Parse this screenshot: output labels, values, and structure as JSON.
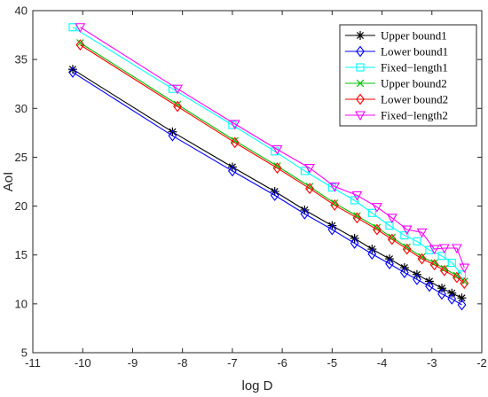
{
  "chart_data": {
    "type": "line",
    "xlabel": "log D",
    "ylabel": "AoI",
    "xlim": [
      -11,
      -2
    ],
    "ylim": [
      5,
      40
    ],
    "xticks": [
      -11,
      -10,
      -9,
      -8,
      -7,
      -6,
      -5,
      -4,
      -3,
      -2
    ],
    "yticks": [
      5,
      10,
      15,
      20,
      25,
      30,
      35,
      40
    ],
    "grid": false,
    "legend_position": "top-right",
    "series": [
      {
        "name": "Upper bound1",
        "color": "#000000",
        "marker": "asterisk",
        "x": [
          -10.2,
          -8.2,
          -7.0,
          -6.15,
          -5.55,
          -5.0,
          -4.55,
          -4.2,
          -3.85,
          -3.55,
          -3.3,
          -3.05,
          -2.8,
          -2.6,
          -2.4
        ],
        "y": [
          34.0,
          27.6,
          24.0,
          21.5,
          19.6,
          18.0,
          16.7,
          15.6,
          14.6,
          13.7,
          13.0,
          12.3,
          11.6,
          11.1,
          10.6
        ]
      },
      {
        "name": "Lower bound1",
        "color": "#0000ff",
        "marker": "diamond",
        "x": [
          -10.2,
          -8.2,
          -7.0,
          -6.15,
          -5.55,
          -5.0,
          -4.55,
          -4.2,
          -3.85,
          -3.55,
          -3.3,
          -3.05,
          -2.8,
          -2.6,
          -2.4
        ],
        "y": [
          33.7,
          27.2,
          23.6,
          21.1,
          19.2,
          17.6,
          16.2,
          15.1,
          14.1,
          13.2,
          12.5,
          11.8,
          11.0,
          10.5,
          9.9
        ]
      },
      {
        "name": "Fixed−length1",
        "color": "#00ffff",
        "marker": "square",
        "x": [
          -10.2,
          -8.2,
          -7.0,
          -6.15,
          -5.55,
          -5.0,
          -4.55,
          -4.2,
          -3.85,
          -3.55,
          -3.3,
          -3.05,
          -2.8,
          -2.6,
          -2.4
        ],
        "y": [
          38.3,
          32.0,
          28.3,
          25.6,
          23.6,
          21.9,
          20.6,
          19.3,
          18.0,
          17.0,
          16.4,
          15.5,
          14.9,
          14.2,
          13.0
        ]
      },
      {
        "name": "Upper bound2",
        "color": "#00c000",
        "marker": "x",
        "x": [
          -10.05,
          -8.1,
          -6.95,
          -6.1,
          -5.45,
          -4.95,
          -4.5,
          -4.1,
          -3.8,
          -3.5,
          -3.2,
          -2.95,
          -2.75,
          -2.5,
          -2.35
        ],
        "y": [
          36.7,
          30.4,
          26.7,
          24.1,
          22.0,
          20.3,
          19.0,
          17.8,
          16.8,
          15.8,
          14.8,
          14.2,
          13.6,
          12.9,
          12.3
        ]
      },
      {
        "name": "Lower bound2",
        "color": "#ff0000",
        "marker": "diamond",
        "x": [
          -10.05,
          -8.1,
          -6.95,
          -6.1,
          -5.45,
          -4.95,
          -4.5,
          -4.1,
          -3.8,
          -3.5,
          -3.2,
          -2.95,
          -2.75,
          -2.5,
          -2.35
        ],
        "y": [
          36.5,
          30.2,
          26.5,
          23.9,
          21.8,
          20.1,
          18.8,
          17.6,
          16.6,
          15.6,
          14.6,
          14.0,
          13.4,
          12.7,
          12.1
        ]
      },
      {
        "name": "Fixed−length2",
        "color": "#ff00ff",
        "marker": "triangle-down",
        "x": [
          -10.05,
          -8.1,
          -6.95,
          -6.1,
          -5.45,
          -4.95,
          -4.5,
          -4.1,
          -3.8,
          -3.5,
          -3.2,
          -2.95,
          -2.75,
          -2.5,
          -2.35
        ],
        "y": [
          38.3,
          32.0,
          28.4,
          25.8,
          23.9,
          22.0,
          21.1,
          19.9,
          18.8,
          17.6,
          17.3,
          15.6,
          15.7,
          15.7,
          13.7
        ]
      }
    ]
  }
}
